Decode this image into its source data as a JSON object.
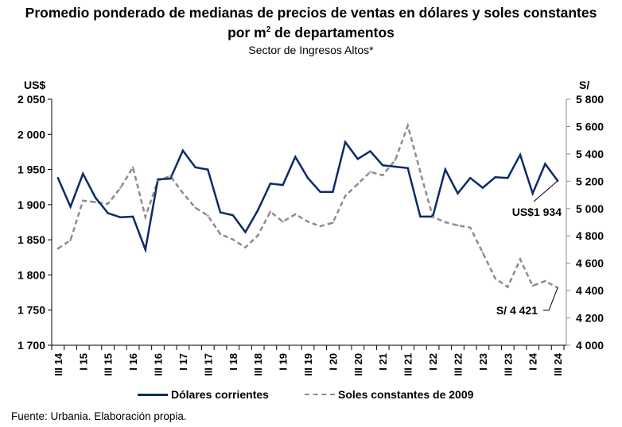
{
  "title_line1": "Promedio ponderado de medianas de precios de ventas en dólares y soles constantes",
  "title_line2_pre": "por m",
  "title_line2_sup": "2",
  "title_line2_post": " de departamentos",
  "subtitle": "Sector de Ingresos Altos*",
  "source": "Fuente: Urbania. Elaboración propia.",
  "colors": {
    "usd": "#0b2a66",
    "pen": "#8c8c8c"
  },
  "chart_data": {
    "type": "line",
    "title": "Promedio ponderado de medianas de precios de ventas en dólares y soles constantes por m2 de departamentos",
    "subtitle": "Sector de Ingresos Altos*",
    "xlabel": "",
    "y_left_label": "US$",
    "y_right_label": "S/",
    "y_left_lim": [
      1700,
      2050
    ],
    "y_right_lim": [
      4000,
      5800
    ],
    "y_left_ticks": [
      "1 700",
      "1 750",
      "1 800",
      "1 850",
      "1 900",
      "1 950",
      "2 000",
      "2 050"
    ],
    "y_left_tick_values": [
      1700,
      1750,
      1800,
      1850,
      1900,
      1950,
      2000,
      2050
    ],
    "y_right_ticks": [
      "4 000",
      "4 200",
      "4 400",
      "4 600",
      "4 800",
      "5 000",
      "5 200",
      "5 400",
      "5 600",
      "5 800"
    ],
    "y_right_tick_values": [
      4000,
      4200,
      4400,
      4600,
      4800,
      5000,
      5200,
      5400,
      5600,
      5800
    ],
    "grid": false,
    "legend_position": "bottom",
    "x_labels": [
      "III 14",
      "",
      "I 15",
      "",
      "III 15",
      "",
      "I 16",
      "",
      "III 16",
      "",
      "I 17",
      "",
      "III 17",
      "",
      "I 18",
      "",
      "III 18",
      "",
      "I 19",
      "",
      "III 19",
      "",
      "I 20",
      "",
      "III 20",
      "",
      "I 21",
      "",
      "III 21",
      "",
      "I 22",
      "",
      "III 22",
      "",
      "I 23",
      "",
      "III 23",
      "",
      "I 24",
      "",
      "III 24"
    ],
    "series": [
      {
        "name": "Dólares corrientes",
        "axis": "left",
        "style": "solid",
        "values": [
          1938,
          1897,
          1944,
          1910,
          1888,
          1882,
          1883,
          1836,
          1936,
          1937,
          1977,
          1953,
          1950,
          1889,
          1885,
          1861,
          1892,
          1930,
          1928,
          1968,
          1938,
          1918,
          1918,
          1989,
          1965,
          1976,
          1956,
          1954,
          1952,
          1883,
          1883,
          1950,
          1916,
          1938,
          1924,
          1939,
          1938,
          1971,
          1916,
          1958,
          1934
        ]
      },
      {
        "name": "Soles constantes de 2009",
        "axis": "right",
        "style": "dashed",
        "values": [
          4707,
          4768,
          5058,
          5047,
          5035,
          5151,
          5302,
          4939,
          5204,
          5239,
          5113,
          5006,
          4948,
          4813,
          4774,
          4716,
          4803,
          4977,
          4904,
          4958,
          4904,
          4871,
          4896,
          5093,
          5180,
          5268,
          5244,
          5355,
          5606,
          5268,
          4939,
          4900,
          4877,
          4861,
          4677,
          4489,
          4426,
          4629,
          4435,
          4470,
          4421
        ]
      }
    ],
    "annotations": [
      {
        "series": "Dólares corrientes",
        "text": "US$1 934"
      },
      {
        "series": "Soles constantes de 2009",
        "text": "S/ 4 421"
      }
    ]
  }
}
